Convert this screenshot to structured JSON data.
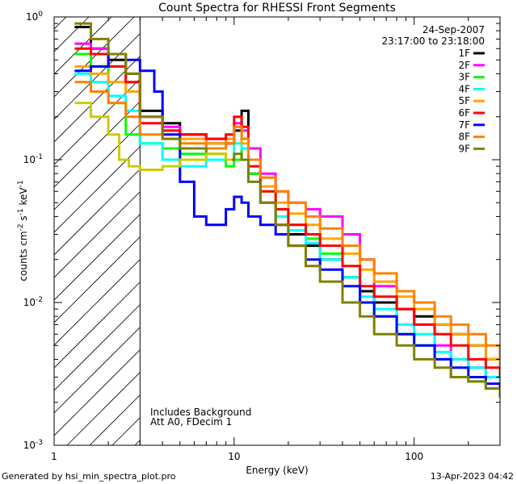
{
  "chart_data": {
    "type": "line",
    "title": "Count Spectra for RHESSI Front Segments",
    "xlabel": "Energy (keV)",
    "ylabel": "counts cm-2 s-1 keV-1",
    "xscale": "log",
    "yscale": "log",
    "xlim": [
      1,
      300
    ],
    "ylim": [
      0.001,
      1
    ],
    "x_tick_labels": [
      "1",
      "10",
      "100"
    ],
    "y_tick_labels": [
      {
        "base": "10",
        "exp": "0"
      },
      {
        "base": "10",
        "exp": "-1"
      },
      {
        "base": "10",
        "exp": "-2"
      },
      {
        "base": "10",
        "exp": "-3"
      }
    ],
    "legend_position": "top-right",
    "date": "24-Sep-2007",
    "time_range": "23:17:00 to 23:18:00",
    "annotations": [
      "Includes Background",
      "Att A0, FDecim 1"
    ],
    "attenuator_cutoff_keV": 3,
    "series": [
      {
        "name": "1F",
        "color": "#000000",
        "points": [
          [
            1.3,
            0.85
          ],
          [
            1.6,
            0.6
          ],
          [
            2,
            0.5
          ],
          [
            2.5,
            0.4
          ],
          [
            3,
            0.22
          ],
          [
            4,
            0.18
          ],
          [
            5,
            0.15
          ],
          [
            7,
            0.13
          ],
          [
            9,
            0.13
          ],
          [
            10,
            0.16
          ],
          [
            11,
            0.22
          ],
          [
            12,
            0.08
          ],
          [
            14,
            0.05
          ],
          [
            17,
            0.035
          ],
          [
            20,
            0.03
          ],
          [
            25,
            0.025
          ],
          [
            30,
            0.02
          ],
          [
            40,
            0.015
          ],
          [
            50,
            0.012
          ],
          [
            60,
            0.01
          ],
          [
            80,
            0.009
          ],
          [
            100,
            0.008
          ],
          [
            130,
            0.007
          ],
          [
            160,
            0.006
          ],
          [
            200,
            0.005
          ],
          [
            250,
            0.004
          ],
          [
            300,
            0.003
          ]
        ]
      },
      {
        "name": "2F",
        "color": "#ff00ff",
        "points": [
          [
            1.3,
            0.65
          ],
          [
            1.6,
            0.6
          ],
          [
            2,
            0.45
          ],
          [
            2.5,
            0.35
          ],
          [
            3,
            0.2
          ],
          [
            4,
            0.17
          ],
          [
            5,
            0.15
          ],
          [
            7,
            0.14
          ],
          [
            9,
            0.13
          ],
          [
            10,
            0.18
          ],
          [
            11,
            0.16
          ],
          [
            12,
            0.12
          ],
          [
            14,
            0.08
          ],
          [
            17,
            0.06
          ],
          [
            20,
            0.05
          ],
          [
            25,
            0.045
          ],
          [
            30,
            0.04
          ],
          [
            40,
            0.03
          ],
          [
            50,
            0.02
          ],
          [
            60,
            0.013
          ],
          [
            80,
            0.009
          ],
          [
            100,
            0.007
          ],
          [
            130,
            0.005
          ],
          [
            160,
            0.004
          ],
          [
            200,
            0.0035
          ],
          [
            250,
            0.003
          ],
          [
            300,
            0.0025
          ]
        ]
      },
      {
        "name": "3F",
        "color": "#00ff00",
        "points": [
          [
            1.3,
            0.55
          ],
          [
            1.6,
            0.45
          ],
          [
            2,
            0.25
          ],
          [
            2.5,
            0.15
          ],
          [
            3,
            0.13
          ],
          [
            4,
            0.12
          ],
          [
            5,
            0.11
          ],
          [
            7,
            0.1
          ],
          [
            9,
            0.09
          ],
          [
            10,
            0.1
          ],
          [
            11,
            0.12
          ],
          [
            12,
            0.08
          ],
          [
            14,
            0.06
          ],
          [
            17,
            0.045
          ],
          [
            20,
            0.035
          ],
          [
            25,
            0.028
          ],
          [
            30,
            0.022
          ],
          [
            40,
            0.015
          ],
          [
            50,
            0.01
          ],
          [
            60,
            0.008
          ],
          [
            80,
            0.006
          ],
          [
            100,
            0.005
          ],
          [
            130,
            0.004
          ],
          [
            160,
            0.003
          ],
          [
            200,
            0.0028
          ],
          [
            250,
            0.0025
          ],
          [
            300,
            0.0022
          ]
        ]
      },
      {
        "name": "4F",
        "color": "#00ffff",
        "points": [
          [
            1.3,
            0.4
          ],
          [
            1.6,
            0.35
          ],
          [
            2,
            0.28
          ],
          [
            2.5,
            0.22
          ],
          [
            3,
            0.13
          ],
          [
            4,
            0.1
          ],
          [
            5,
            0.09
          ],
          [
            7,
            0.1
          ],
          [
            9,
            0.1
          ],
          [
            10,
            0.13
          ],
          [
            11,
            0.12
          ],
          [
            12,
            0.07
          ],
          [
            14,
            0.05
          ],
          [
            17,
            0.04
          ],
          [
            20,
            0.032
          ],
          [
            25,
            0.026
          ],
          [
            30,
            0.02
          ],
          [
            40,
            0.015
          ],
          [
            50,
            0.011
          ],
          [
            60,
            0.009
          ],
          [
            80,
            0.007
          ],
          [
            100,
            0.006
          ],
          [
            130,
            0.0045
          ],
          [
            160,
            0.004
          ],
          [
            200,
            0.0035
          ],
          [
            250,
            0.003
          ],
          [
            300,
            0.0028
          ]
        ]
      },
      {
        "name": "5F",
        "color": "#ffa500",
        "points": [
          [
            1.3,
            0.45
          ],
          [
            1.6,
            0.4
          ],
          [
            2,
            0.35
          ],
          [
            2.5,
            0.3
          ],
          [
            3,
            0.2
          ],
          [
            4,
            0.16
          ],
          [
            5,
            0.14
          ],
          [
            7,
            0.13
          ],
          [
            9,
            0.14
          ],
          [
            10,
            0.17
          ],
          [
            11,
            0.13
          ],
          [
            12,
            0.09
          ],
          [
            14,
            0.065
          ],
          [
            17,
            0.05
          ],
          [
            20,
            0.042
          ],
          [
            25,
            0.035
          ],
          [
            30,
            0.028
          ],
          [
            40,
            0.022
          ],
          [
            50,
            0.017
          ],
          [
            60,
            0.014
          ],
          [
            80,
            0.011
          ],
          [
            100,
            0.009
          ],
          [
            130,
            0.007
          ],
          [
            160,
            0.006
          ],
          [
            200,
            0.005
          ],
          [
            250,
            0.004
          ],
          [
            300,
            0.0035
          ]
        ]
      },
      {
        "name": "6F",
        "color": "#ff0000",
        "points": [
          [
            1.3,
            0.6
          ],
          [
            1.6,
            0.55
          ],
          [
            2,
            0.45
          ],
          [
            2.5,
            0.35
          ],
          [
            3,
            0.18
          ],
          [
            4,
            0.16
          ],
          [
            5,
            0.15
          ],
          [
            7,
            0.14
          ],
          [
            9,
            0.15
          ],
          [
            10,
            0.2
          ],
          [
            11,
            0.17
          ],
          [
            12,
            0.09
          ],
          [
            14,
            0.06
          ],
          [
            17,
            0.045
          ],
          [
            20,
            0.035
          ],
          [
            25,
            0.03
          ],
          [
            30,
            0.025
          ],
          [
            40,
            0.018
          ],
          [
            50,
            0.013
          ],
          [
            60,
            0.011
          ],
          [
            80,
            0.009
          ],
          [
            100,
            0.007
          ],
          [
            130,
            0.006
          ],
          [
            160,
            0.005
          ],
          [
            200,
            0.004
          ],
          [
            250,
            0.0035
          ],
          [
            300,
            0.003
          ]
        ]
      },
      {
        "name": "7F",
        "color": "#0000ff",
        "points": [
          [
            1.3,
            0.42
          ],
          [
            1.6,
            0.45
          ],
          [
            2,
            0.55
          ],
          [
            2.5,
            0.5
          ],
          [
            3,
            0.42
          ],
          [
            3.6,
            0.3
          ],
          [
            4,
            0.15
          ],
          [
            5,
            0.07
          ],
          [
            6,
            0.04
          ],
          [
            7,
            0.035
          ],
          [
            8,
            0.035
          ],
          [
            9,
            0.045
          ],
          [
            10,
            0.055
          ],
          [
            11,
            0.05
          ],
          [
            12,
            0.04
          ],
          [
            14,
            0.035
          ],
          [
            17,
            0.03
          ],
          [
            20,
            0.025
          ],
          [
            25,
            0.02
          ],
          [
            30,
            0.017
          ],
          [
            40,
            0.013
          ],
          [
            50,
            0.01
          ],
          [
            60,
            0.008
          ],
          [
            80,
            0.006
          ],
          [
            100,
            0.005
          ],
          [
            130,
            0.004
          ],
          [
            160,
            0.0035
          ],
          [
            200,
            0.003
          ],
          [
            250,
            0.0027
          ],
          [
            300,
            0.0025
          ]
        ]
      },
      {
        "name": "8F",
        "color": "#ff8000",
        "points": [
          [
            1.3,
            0.35
          ],
          [
            1.6,
            0.3
          ],
          [
            2,
            0.25
          ],
          [
            2.5,
            0.2
          ],
          [
            3,
            0.15
          ],
          [
            4,
            0.14
          ],
          [
            5,
            0.13
          ],
          [
            7,
            0.12
          ],
          [
            9,
            0.13
          ],
          [
            10,
            0.17
          ],
          [
            11,
            0.14
          ],
          [
            12,
            0.1
          ],
          [
            14,
            0.075
          ],
          [
            17,
            0.06
          ],
          [
            20,
            0.05
          ],
          [
            25,
            0.04
          ],
          [
            30,
            0.033
          ],
          [
            40,
            0.025
          ],
          [
            50,
            0.02
          ],
          [
            60,
            0.016
          ],
          [
            80,
            0.012
          ],
          [
            100,
            0.01
          ],
          [
            130,
            0.008
          ],
          [
            160,
            0.007
          ],
          [
            200,
            0.006
          ],
          [
            250,
            0.005
          ],
          [
            300,
            0.004
          ]
        ]
      },
      {
        "name": "9F",
        "color": "#808000",
        "points": [
          [
            1.3,
            0.9
          ],
          [
            1.6,
            0.7
          ],
          [
            2,
            0.55
          ],
          [
            2.5,
            0.4
          ],
          [
            3,
            0.2
          ],
          [
            4,
            0.14
          ],
          [
            5,
            0.12
          ],
          [
            7,
            0.11
          ],
          [
            9,
            0.1
          ],
          [
            10,
            0.11
          ],
          [
            11,
            0.1
          ],
          [
            12,
            0.07
          ],
          [
            14,
            0.05
          ],
          [
            17,
            0.035
          ],
          [
            20,
            0.025
          ],
          [
            25,
            0.018
          ],
          [
            30,
            0.014
          ],
          [
            40,
            0.01
          ],
          [
            50,
            0.008
          ],
          [
            60,
            0.006
          ],
          [
            80,
            0.005
          ],
          [
            100,
            0.004
          ],
          [
            130,
            0.0035
          ],
          [
            160,
            0.003
          ],
          [
            200,
            0.0028
          ],
          [
            250,
            0.0025
          ],
          [
            300,
            0.0022
          ]
        ]
      },
      {
        "name": "",
        "color": "#cccc00",
        "points": [
          [
            1.3,
            0.25
          ],
          [
            1.6,
            0.2
          ],
          [
            2,
            0.15
          ],
          [
            2.3,
            0.1
          ],
          [
            2.6,
            0.09
          ],
          [
            3,
            0.085
          ],
          [
            4,
            0.09
          ],
          [
            5,
            0.1
          ],
          [
            7,
            0.11
          ],
          [
            9,
            0.1
          ]
        ]
      }
    ]
  },
  "footer": {
    "left": "Generated by hsi_min_spectra_plot.pro",
    "right": "13-Apr-2023 04:42"
  }
}
